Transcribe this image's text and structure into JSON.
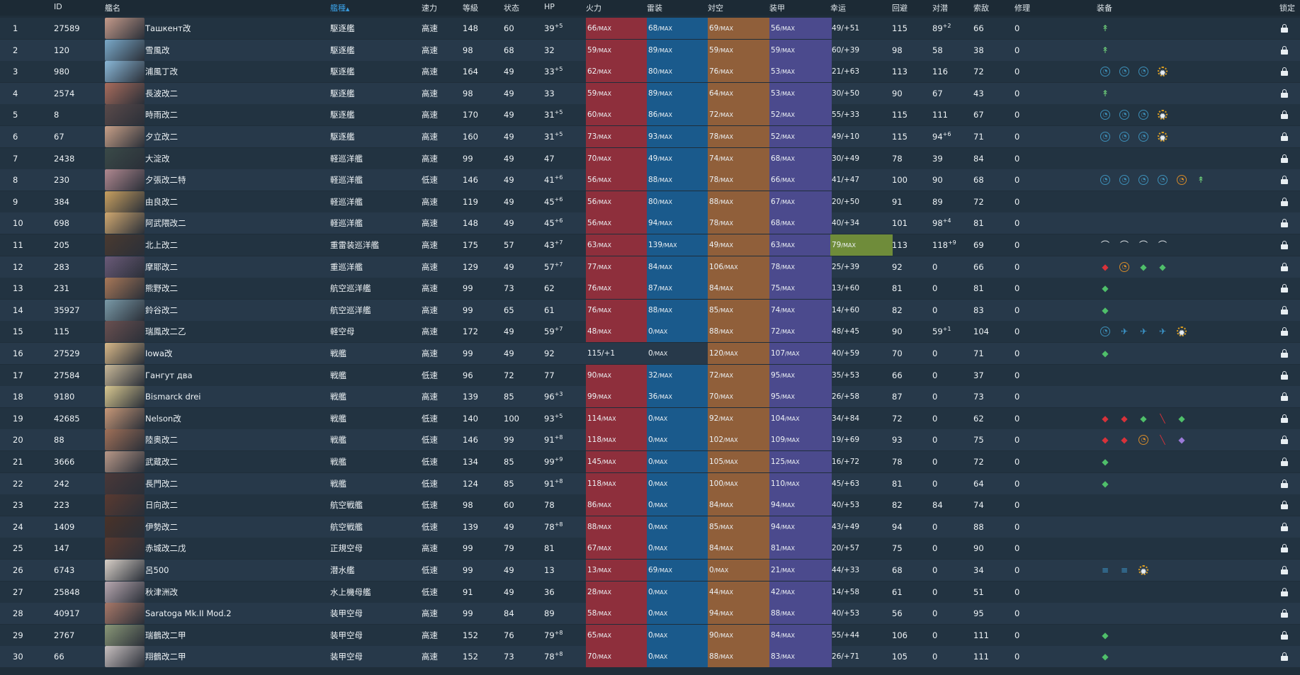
{
  "headers": {
    "id": "ID",
    "name": "艦名",
    "type": "艦種",
    "speed": "速力",
    "level": "等級",
    "cond": "状态",
    "hp": "HP",
    "fire": "火力",
    "torp": "雷装",
    "aa": "対空",
    "armor": "装甲",
    "luck": "幸运",
    "evasion": "回避",
    "asw": "对潜",
    "los": "索敌",
    "repair": "修理",
    "equip": "装备",
    "lock": "锁定"
  },
  "sort_indicator": "▲",
  "max_suffix": "/MAX",
  "colors": {
    "firepower": "#8e2f3c",
    "torpedo": "#1a5a8c",
    "antiair": "#905f3a",
    "armor": "#4b4a8d",
    "luck_maxed": "#6f8c3a",
    "sorted_header": "#3a9de0"
  },
  "rows": [
    {
      "no": "1",
      "id": "27589",
      "name": "Ташкент改",
      "type": "駆逐艦",
      "speed": "高速",
      "level": "148",
      "cond": "60",
      "hp": "39",
      "hp_mod": "+5",
      "fire": "66",
      "torp": "68",
      "aa": "69",
      "armor": "56",
      "luck": "49/+51",
      "evasion": "115",
      "asw": "89",
      "asw_mod": "+2",
      "los": "66",
      "repair": "0",
      "equip": [
        "green-small"
      ],
      "avatar": "#c49a8a"
    },
    {
      "no": "2",
      "id": "120",
      "name": "雪風改",
      "type": "駆逐艦",
      "speed": "高速",
      "level": "98",
      "cond": "68",
      "hp": "32",
      "hp_mod": "",
      "fire": "59",
      "torp": "89",
      "aa": "59",
      "armor": "59",
      "luck": "60/+39",
      "evasion": "98",
      "asw": "58",
      "asw_mod": "",
      "los": "38",
      "repair": "0",
      "equip": [
        "green-small"
      ],
      "avatar": "#7aa9c9"
    },
    {
      "no": "3",
      "id": "980",
      "name": "浦風丁改",
      "type": "駆逐艦",
      "speed": "高速",
      "level": "164",
      "cond": "49",
      "hp": "33",
      "hp_mod": "+5",
      "fire": "62",
      "torp": "80",
      "aa": "76",
      "armor": "53",
      "luck": "21/+63",
      "evasion": "113",
      "asw": "116",
      "asw_mod": "",
      "los": "72",
      "repair": "0",
      "equip": [
        "circle",
        "circle",
        "circle",
        "gear"
      ],
      "avatar": "#8ab8d8"
    },
    {
      "no": "4",
      "id": "2574",
      "name": "長波改二",
      "type": "駆逐艦",
      "speed": "高速",
      "level": "98",
      "cond": "49",
      "hp": "33",
      "hp_mod": "",
      "fire": "59",
      "torp": "89",
      "aa": "64",
      "armor": "53",
      "luck": "30/+50",
      "evasion": "90",
      "asw": "67",
      "asw_mod": "",
      "los": "43",
      "repair": "0",
      "equip": [
        "green-small"
      ],
      "avatar": "#a86c5c"
    },
    {
      "no": "5",
      "id": "8",
      "name": "時雨改二",
      "type": "駆逐艦",
      "speed": "高速",
      "level": "170",
      "cond": "49",
      "hp": "31",
      "hp_mod": "+5",
      "fire": "60",
      "torp": "86",
      "aa": "72",
      "armor": "52",
      "luck": "55/+33",
      "evasion": "115",
      "asw": "111",
      "asw_mod": "",
      "los": "67",
      "repair": "0",
      "equip": [
        "circle",
        "circle",
        "circle",
        "gear"
      ],
      "avatar": "#5a4a4a"
    },
    {
      "no": "6",
      "id": "67",
      "name": "夕立改二",
      "type": "駆逐艦",
      "speed": "高速",
      "level": "160",
      "cond": "49",
      "hp": "31",
      "hp_mod": "+5",
      "fire": "73",
      "torp": "93",
      "aa": "78",
      "armor": "52",
      "luck": "49/+10",
      "evasion": "115",
      "asw": "94",
      "asw_mod": "+6",
      "los": "71",
      "repair": "0",
      "equip": [
        "circle",
        "circle",
        "circle",
        "gear"
      ],
      "avatar": "#c8a088"
    },
    {
      "no": "7",
      "id": "2438",
      "name": "大淀改",
      "type": "軽巡洋艦",
      "speed": "高速",
      "level": "99",
      "cond": "49",
      "hp": "47",
      "hp_mod": "",
      "fire": "70",
      "torp": "49",
      "aa": "74",
      "armor": "68",
      "luck": "30/+49",
      "evasion": "78",
      "asw": "39",
      "asw_mod": "",
      "los": "84",
      "repair": "0",
      "equip": [],
      "avatar": "#3a4a48"
    },
    {
      "no": "8",
      "id": "230",
      "name": "夕張改二特",
      "type": "軽巡洋艦",
      "speed": "低速",
      "level": "146",
      "cond": "49",
      "hp": "41",
      "hp_mod": "+6",
      "fire": "56",
      "torp": "88",
      "aa": "78",
      "armor": "66",
      "luck": "41/+47",
      "evasion": "100",
      "asw": "90",
      "asw_mod": "",
      "los": "68",
      "repair": "0",
      "equip": [
        "circle",
        "circle",
        "circle",
        "circle",
        "radar",
        "green-small"
      ],
      "avatar": "#b08890"
    },
    {
      "no": "9",
      "id": "384",
      "name": "由良改二",
      "type": "軽巡洋艦",
      "speed": "高速",
      "level": "119",
      "cond": "49",
      "hp": "45",
      "hp_mod": "+6",
      "fire": "56",
      "torp": "80",
      "aa": "88",
      "armor": "67",
      "luck": "20/+50",
      "evasion": "91",
      "asw": "89",
      "asw_mod": "",
      "los": "72",
      "repair": "0",
      "equip": [],
      "avatar": "#c8a060"
    },
    {
      "no": "10",
      "id": "698",
      "name": "阿武隈改二",
      "type": "軽巡洋艦",
      "speed": "高速",
      "level": "148",
      "cond": "49",
      "hp": "45",
      "hp_mod": "+6",
      "fire": "56",
      "torp": "94",
      "aa": "78",
      "armor": "68",
      "luck": "40/+34",
      "evasion": "101",
      "asw": "98",
      "asw_mod": "+4",
      "los": "81",
      "repair": "0",
      "equip": [],
      "avatar": "#d0a870"
    },
    {
      "no": "11",
      "id": "205",
      "name": "北上改二",
      "type": "重雷装巡洋艦",
      "speed": "高速",
      "level": "175",
      "cond": "57",
      "hp": "43",
      "hp_mod": "+7",
      "fire": "63",
      "torp": "139",
      "aa": "49",
      "armor": "63",
      "luck": "79",
      "luck_max": true,
      "evasion": "113",
      "asw": "118",
      "asw_mod": "+9",
      "los": "69",
      "repair": "0",
      "equip": [
        "arch",
        "arch",
        "arch",
        "arch"
      ],
      "avatar": "#4a3a30"
    },
    {
      "no": "12",
      "id": "283",
      "name": "摩耶改二",
      "type": "重巡洋艦",
      "speed": "高速",
      "level": "129",
      "cond": "49",
      "hp": "57",
      "hp_mod": "+7",
      "fire": "77",
      "torp": "84",
      "aa": "106",
      "armor": "78",
      "luck": "25/+39",
      "evasion": "92",
      "asw": "0",
      "asw_mod": "",
      "los": "66",
      "repair": "0",
      "equip": [
        "red",
        "radar",
        "green",
        "green"
      ],
      "avatar": "#6a5a78"
    },
    {
      "no": "13",
      "id": "231",
      "name": "熊野改二",
      "type": "航空巡洋艦",
      "speed": "高速",
      "level": "99",
      "cond": "73",
      "hp": "62",
      "hp_mod": "",
      "fire": "76",
      "torp": "87",
      "aa": "84",
      "armor": "75",
      "luck": "13/+60",
      "evasion": "81",
      "asw": "0",
      "asw_mod": "",
      "los": "81",
      "repair": "0",
      "equip": [
        "green"
      ],
      "avatar": "#a87858"
    },
    {
      "no": "14",
      "id": "35927",
      "name": "鈴谷改二",
      "type": "航空巡洋艦",
      "speed": "高速",
      "level": "99",
      "cond": "65",
      "hp": "61",
      "hp_mod": "",
      "fire": "76",
      "torp": "88",
      "aa": "85",
      "armor": "74",
      "luck": "14/+60",
      "evasion": "82",
      "asw": "0",
      "asw_mod": "",
      "los": "83",
      "repair": "0",
      "equip": [
        "green"
      ],
      "avatar": "#7a9aa8"
    },
    {
      "no": "15",
      "id": "115",
      "name": "瑞鳳改二乙",
      "type": "軽空母",
      "speed": "高速",
      "level": "172",
      "cond": "49",
      "hp": "59",
      "hp_mod": "+7",
      "fire": "48",
      "torp": "0",
      "aa": "88",
      "armor": "72",
      "luck": "48/+45",
      "evasion": "90",
      "asw": "59",
      "asw_mod": "+1",
      "los": "104",
      "repair": "0",
      "equip": [
        "circle",
        "plane",
        "plane",
        "plane",
        "gear"
      ],
      "avatar": "#6a5050"
    },
    {
      "no": "16",
      "id": "27529",
      "name": "Iowa改",
      "type": "戦艦",
      "speed": "高速",
      "level": "99",
      "cond": "49",
      "hp": "92",
      "hp_mod": "",
      "fire": "115/+1",
      "fire_raw": true,
      "torp": "0",
      "aa": "120",
      "armor": "107",
      "luck": "40/+59",
      "evasion": "70",
      "asw": "0",
      "asw_mod": "",
      "los": "71",
      "repair": "0",
      "equip": [
        "green"
      ],
      "avatar": "#d8b888"
    },
    {
      "no": "17",
      "id": "27584",
      "name": "Гангут два",
      "type": "戦艦",
      "speed": "低速",
      "level": "96",
      "cond": "72",
      "hp": "77",
      "hp_mod": "",
      "fire": "90",
      "torp": "32",
      "aa": "72",
      "armor": "95",
      "luck": "35/+53",
      "evasion": "66",
      "asw": "0",
      "asw_mod": "",
      "los": "37",
      "repair": "0",
      "equip": [],
      "avatar": "#c8b898"
    },
    {
      "no": "18",
      "id": "9180",
      "name": "Bismarck drei",
      "type": "戦艦",
      "speed": "高速",
      "level": "139",
      "cond": "85",
      "hp": "96",
      "hp_mod": "+3",
      "fire": "99",
      "torp": "36",
      "aa": "70",
      "armor": "95",
      "luck": "26/+58",
      "evasion": "87",
      "asw": "0",
      "asw_mod": "",
      "los": "73",
      "repair": "0",
      "equip": [],
      "avatar": "#d8c890"
    },
    {
      "no": "19",
      "id": "42685",
      "name": "Nelson改",
      "type": "戦艦",
      "speed": "低速",
      "level": "140",
      "cond": "100",
      "hp": "93",
      "hp_mod": "+5",
      "fire": "114",
      "torp": "0",
      "aa": "92",
      "armor": "104",
      "luck": "34/+84",
      "evasion": "72",
      "asw": "0",
      "asw_mod": "",
      "los": "62",
      "repair": "0",
      "equip": [
        "red",
        "red",
        "green",
        "red-small",
        "green"
      ],
      "avatar": "#c89878"
    },
    {
      "no": "20",
      "id": "88",
      "name": "陸奥改二",
      "type": "戦艦",
      "speed": "低速",
      "level": "146",
      "cond": "99",
      "hp": "91",
      "hp_mod": "+8",
      "fire": "118",
      "torp": "0",
      "aa": "102",
      "armor": "109",
      "luck": "19/+69",
      "evasion": "93",
      "asw": "0",
      "asw_mod": "",
      "los": "75",
      "repair": "0",
      "equip": [
        "red",
        "red",
        "radar",
        "red-small",
        "purple"
      ],
      "avatar": "#a07058"
    },
    {
      "no": "21",
      "id": "3666",
      "name": "武蔵改二",
      "type": "戦艦",
      "speed": "低速",
      "level": "134",
      "cond": "85",
      "hp": "99",
      "hp_mod": "+9",
      "fire": "145",
      "torp": "0",
      "aa": "105",
      "armor": "125",
      "luck": "16/+72",
      "evasion": "78",
      "asw": "0",
      "asw_mod": "",
      "los": "72",
      "repair": "0",
      "equip": [
        "green"
      ],
      "avatar": "#b89888"
    },
    {
      "no": "22",
      "id": "242",
      "name": "長門改二",
      "type": "戦艦",
      "speed": "低速",
      "level": "124",
      "cond": "85",
      "hp": "91",
      "hp_mod": "+8",
      "fire": "118",
      "torp": "0",
      "aa": "100",
      "armor": "110",
      "luck": "45/+63",
      "evasion": "81",
      "asw": "0",
      "asw_mod": "",
      "los": "64",
      "repair": "0",
      "equip": [
        "green"
      ],
      "avatar": "#4a3838"
    },
    {
      "no": "23",
      "id": "223",
      "name": "日向改二",
      "type": "航空戦艦",
      "speed": "低速",
      "level": "98",
      "cond": "60",
      "hp": "78",
      "hp_mod": "",
      "fire": "86",
      "torp": "0",
      "aa": "84",
      "armor": "94",
      "luck": "40/+53",
      "evasion": "82",
      "asw": "84",
      "asw_mod": "",
      "los": "74",
      "repair": "0",
      "equip": [],
      "avatar": "#5a3a30"
    },
    {
      "no": "24",
      "id": "1409",
      "name": "伊勢改二",
      "type": "航空戦艦",
      "speed": "低速",
      "level": "139",
      "cond": "49",
      "hp": "78",
      "hp_mod": "+8",
      "fire": "88",
      "torp": "0",
      "aa": "85",
      "armor": "94",
      "luck": "43/+49",
      "evasion": "94",
      "asw": "0",
      "asw_mod": "",
      "los": "88",
      "repair": "0",
      "equip": [],
      "avatar": "#4a3228"
    },
    {
      "no": "25",
      "id": "147",
      "name": "赤城改二戊",
      "type": "正規空母",
      "speed": "高速",
      "level": "99",
      "cond": "79",
      "hp": "81",
      "hp_mod": "",
      "fire": "67",
      "torp": "0",
      "aa": "84",
      "armor": "81",
      "luck": "20/+57",
      "evasion": "75",
      "asw": "0",
      "asw_mod": "",
      "los": "90",
      "repair": "0",
      "equip": [],
      "avatar": "#5a3a30"
    },
    {
      "no": "26",
      "id": "6743",
      "name": "呂500",
      "type": "潜水艦",
      "speed": "低速",
      "level": "99",
      "cond": "49",
      "hp": "13",
      "hp_mod": "",
      "fire": "13",
      "torp": "69",
      "aa": "0",
      "armor": "21",
      "luck": "44/+33",
      "evasion": "68",
      "asw": "0",
      "asw_mod": "",
      "los": "34",
      "repair": "0",
      "equip": [
        "lines",
        "lines",
        "gear"
      ],
      "avatar": "#d8d0c8"
    },
    {
      "no": "27",
      "id": "25848",
      "name": "秋津洲改",
      "type": "水上機母艦",
      "speed": "低速",
      "level": "91",
      "cond": "49",
      "hp": "36",
      "hp_mod": "",
      "fire": "28",
      "torp": "0",
      "aa": "44",
      "armor": "42",
      "luck": "14/+58",
      "evasion": "61",
      "asw": "0",
      "asw_mod": "",
      "los": "51",
      "repair": "0",
      "equip": [],
      "avatar": "#b8a8b0"
    },
    {
      "no": "28",
      "id": "40917",
      "name": "Saratoga Mk.II Mod.2",
      "type": "装甲空母",
      "speed": "高速",
      "level": "99",
      "cond": "84",
      "hp": "89",
      "hp_mod": "",
      "fire": "58",
      "torp": "0",
      "aa": "94",
      "armor": "88",
      "luck": "40/+53",
      "evasion": "56",
      "asw": "0",
      "asw_mod": "",
      "los": "95",
      "repair": "0",
      "equip": [],
      "avatar": "#a87868"
    },
    {
      "no": "29",
      "id": "2767",
      "name": "瑞鶴改二甲",
      "type": "装甲空母",
      "speed": "高速",
      "level": "152",
      "cond": "76",
      "hp": "79",
      "hp_mod": "+8",
      "fire": "65",
      "torp": "0",
      "aa": "90",
      "armor": "84",
      "luck": "55/+44",
      "evasion": "106",
      "asw": "0",
      "asw_mod": "",
      "los": "111",
      "repair": "0",
      "equip": [
        "green"
      ],
      "avatar": "#8a9878"
    },
    {
      "no": "30",
      "id": "66",
      "name": "翔鶴改二甲",
      "type": "装甲空母",
      "speed": "高速",
      "level": "152",
      "cond": "73",
      "hp": "78",
      "hp_mod": "+8",
      "fire": "70",
      "torp": "0",
      "aa": "88",
      "armor": "83",
      "luck": "26/+71",
      "evasion": "105",
      "asw": "0",
      "asw_mod": "",
      "los": "111",
      "repair": "0",
      "equip": [
        "green"
      ],
      "avatar": "#c8c0c0"
    }
  ]
}
